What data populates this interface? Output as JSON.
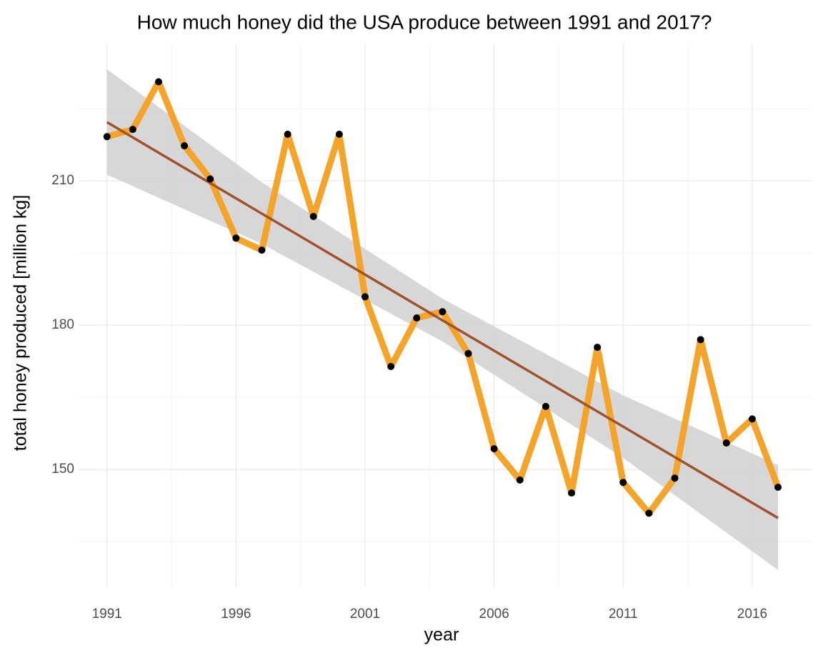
{
  "chart_data": {
    "type": "line",
    "title": "How much honey did the USA produce between 1991 and 2017?",
    "x_label": "year",
    "y_label": "total honey produced [million kg]",
    "x": [
      1991,
      1992,
      1993,
      1994,
      1995,
      1996,
      1997,
      1998,
      1999,
      2000,
      2001,
      2002,
      2003,
      2004,
      2005,
      2006,
      2007,
      2008,
      2009,
      2010,
      2011,
      2012,
      2013,
      2014,
      2015,
      2016,
      2017
    ],
    "series": [
      {
        "name": "honey",
        "color": "#f4a42a",
        "point_color": "#000000",
        "values": [
          219.2,
          220.7,
          230.6,
          217.3,
          210.4,
          198.1,
          195.6,
          219.7,
          202.6,
          219.7,
          185.9,
          171.4,
          181.5,
          182.8,
          174.1,
          154.3,
          147.8,
          163.1,
          145.1,
          175.4,
          147.3,
          140.9,
          148.2,
          177.0,
          155.5,
          160.5,
          146.3
        ]
      }
    ],
    "trend": {
      "color": "#a0522d",
      "band_color": "#d3d3d3",
      "x": [
        1991,
        1997,
        2004,
        2011,
        2017
      ],
      "values": [
        222.2,
        203.2,
        181.0,
        158.9,
        139.9
      ],
      "lower": [
        211.3,
        196.9,
        176.6,
        152.4,
        129.1
      ],
      "upper": [
        233.2,
        209.7,
        185.5,
        165.4,
        150.9
      ]
    },
    "xlim": [
      1989.9,
      2018.3
    ],
    "ylim": [
      125.5,
      238.4
    ],
    "xticks": [
      1991,
      1996,
      2001,
      2006,
      2011,
      2016
    ],
    "yticks": [
      150,
      180,
      210
    ],
    "xticks_minor": [
      1993.5,
      1998.5,
      2003.5,
      2008.5,
      2013.5
    ],
    "yticks_minor": [
      135,
      165,
      195,
      225
    ],
    "grid": true
  }
}
